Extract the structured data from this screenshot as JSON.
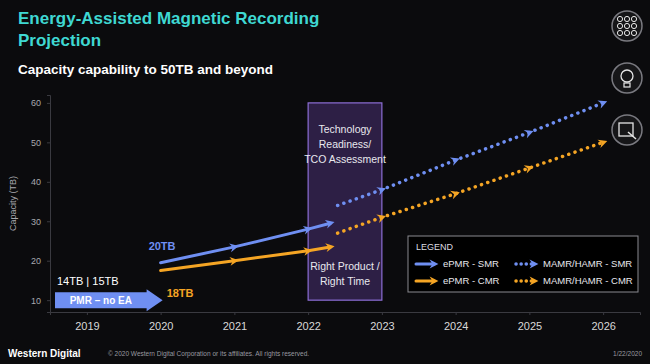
{
  "chart_data": {
    "type": "line",
    "title": [
      "Energy-Assisted Magnetic Recording",
      "Projection"
    ],
    "subtitle": "Capacity capability to 50TB and beyond",
    "y_label": "Capacity (TB)",
    "xlim": [
      2018.5,
      2026.5
    ],
    "xticks": [
      2019,
      2020,
      2021,
      2022,
      2023,
      2024,
      2025,
      2026
    ],
    "ylim": [
      7,
      62
    ],
    "yticks": [
      10,
      20,
      30,
      40,
      50,
      60
    ],
    "grid": false,
    "legend": "lower right",
    "legend_title": "LEGEND",
    "series": [
      {
        "name": "ePMR - SMR",
        "color": "#6f8ff2",
        "line_style": "solid",
        "marker": "arrow",
        "x": [
          2020,
          2021,
          2022,
          2022.3
        ],
        "values": [
          19.5,
          23.5,
          28,
          29.5
        ]
      },
      {
        "name": "ePMR - CMR",
        "color": "#f5a524",
        "line_style": "solid",
        "marker": "arrow",
        "x": [
          2020,
          2021,
          2022,
          2022.3
        ],
        "values": [
          17.5,
          20,
          22.5,
          23.5
        ]
      },
      {
        "name": "MAMR/HAMR - SMR",
        "color": "#6f8ff2",
        "line_style": "dotted",
        "marker": "arrow",
        "x": [
          2022.4,
          2023,
          2024,
          2025,
          2026
        ],
        "values": [
          34,
          38,
          45.5,
          52.5,
          60
        ]
      },
      {
        "name": "MAMR/HAMR - CMR",
        "color": "#f5a524",
        "line_style": "dotted",
        "marker": "arrow",
        "x": [
          2022.4,
          2023,
          2024,
          2025,
          2026
        ],
        "values": [
          27,
          31,
          37,
          43.5,
          50
        ]
      }
    ],
    "annotations": {
      "pmr_capacities": "14TB | 15TB",
      "pmr": "PMR – no EA",
      "cmr_start": "18TB",
      "smr_start": "20TB",
      "assessment": [
        "Technology",
        "Readiness/",
        "TCO Assessment"
      ],
      "timing": [
        "Right Product /",
        "Right Time"
      ]
    }
  },
  "footer": {
    "brand": "Western Digital",
    "copyright": "© 2020 Western Digital Corporation or its affiliates. All rights reserved.",
    "date": "1/22/2020"
  }
}
